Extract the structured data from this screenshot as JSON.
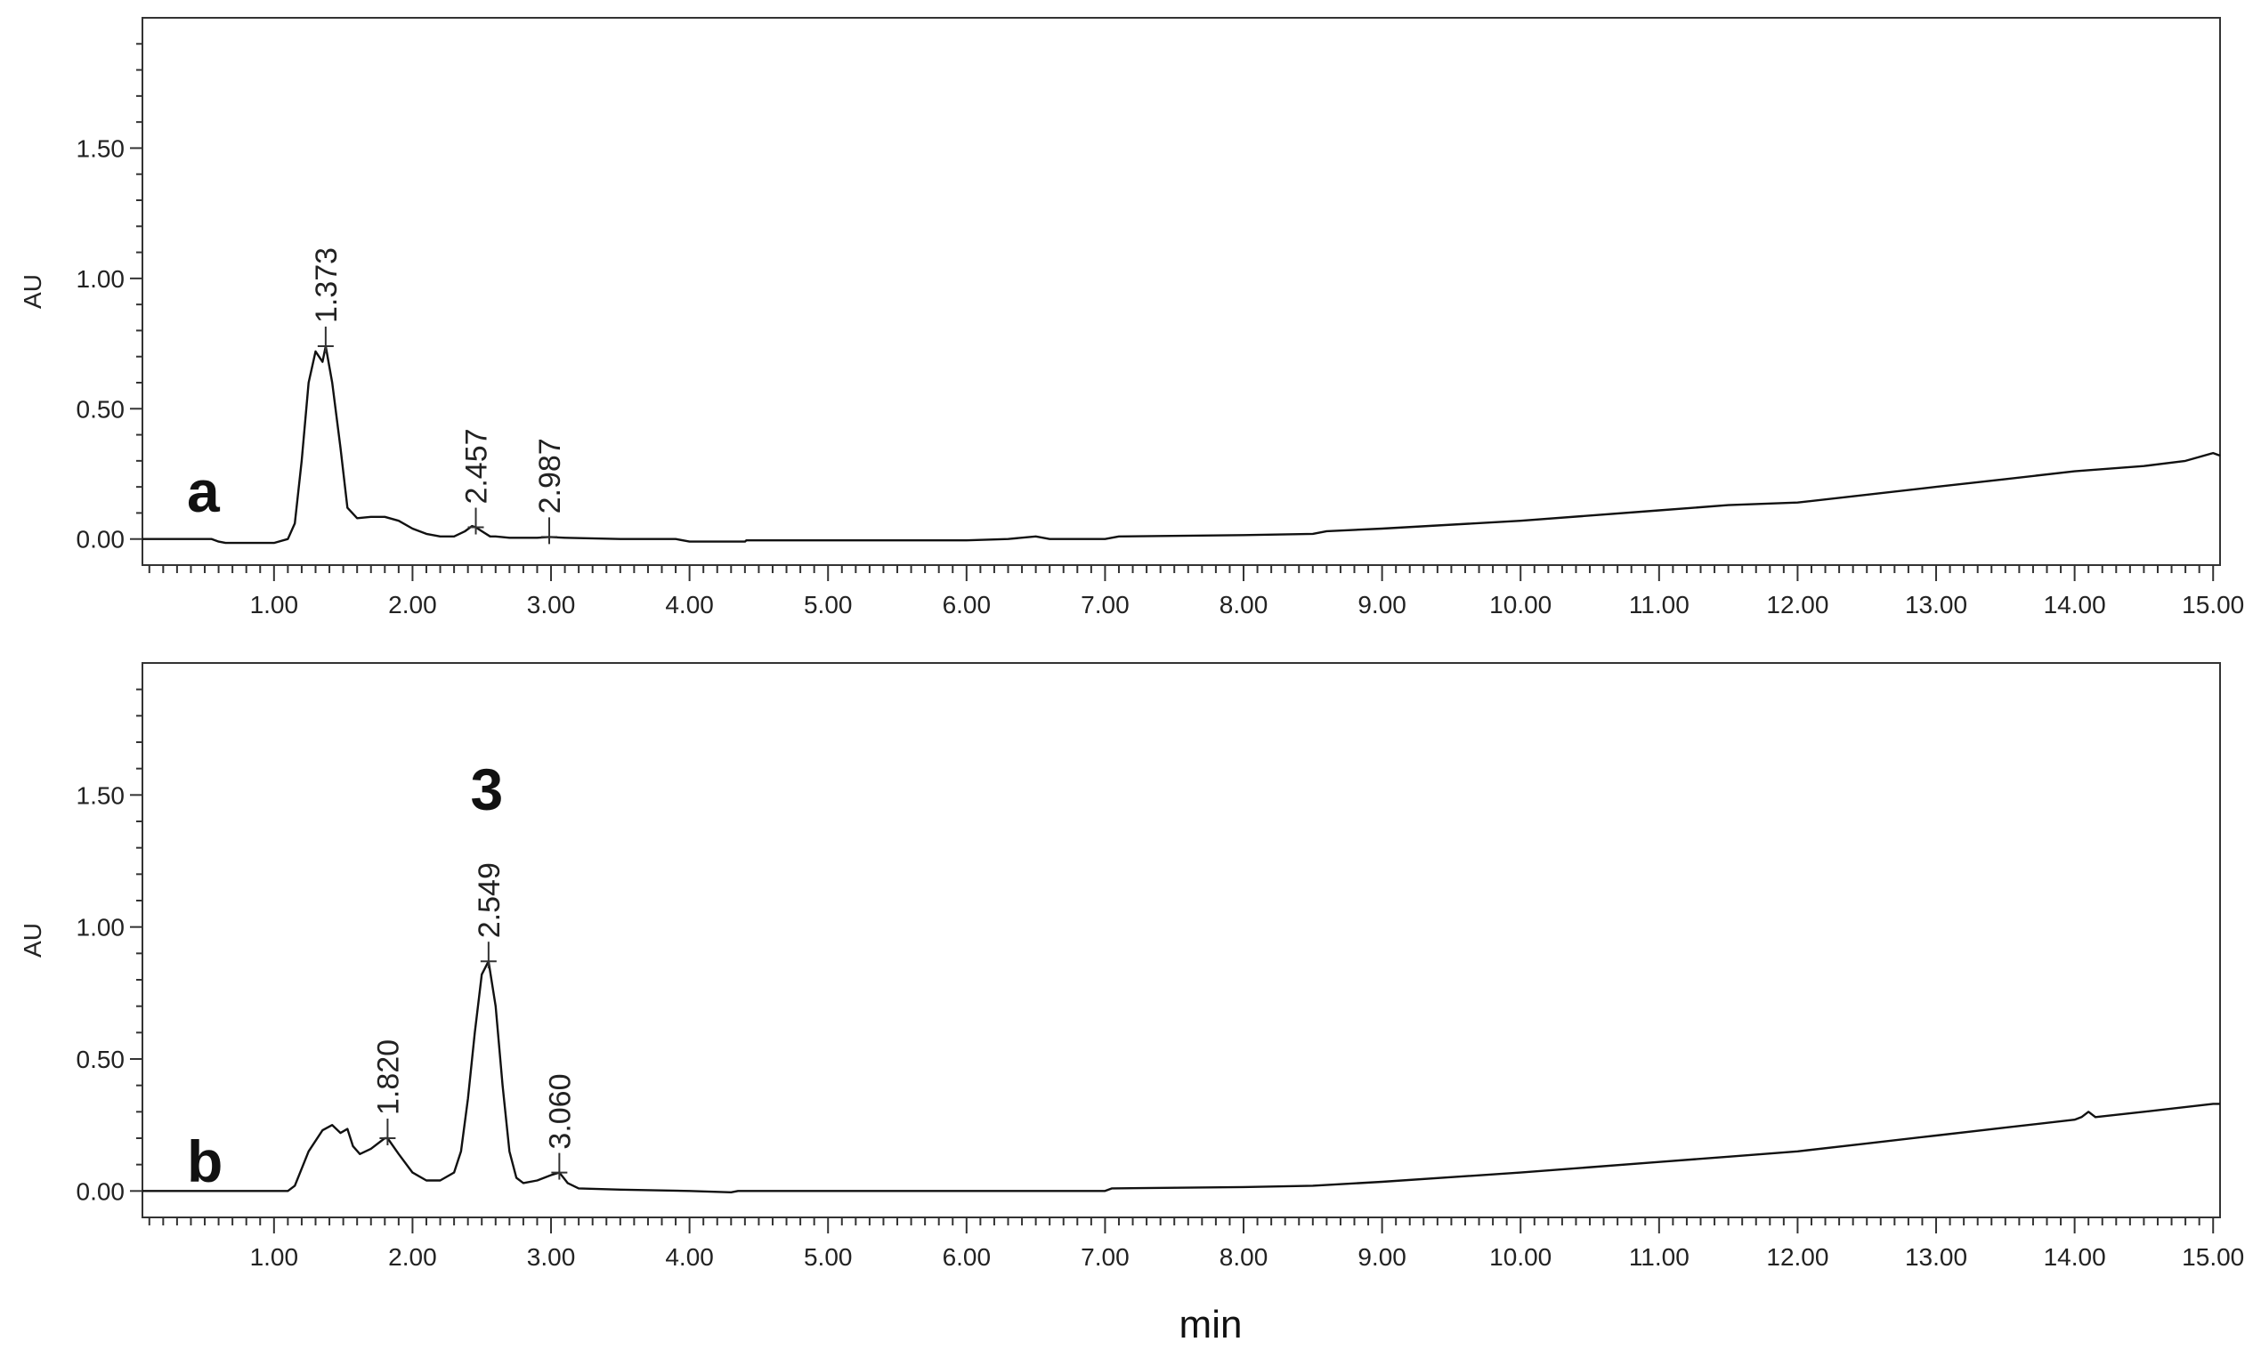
{
  "chart_data": {
    "type": "line",
    "xlabel": "min",
    "x_ticks": [
      "1.00",
      "2.00",
      "3.00",
      "4.00",
      "5.00",
      "6.00",
      "7.00",
      "8.00",
      "9.00",
      "10.00",
      "11.00",
      "12.00",
      "13.00",
      "14.00",
      "15.00"
    ],
    "y_ticks": [
      "0.00",
      "0.50",
      "1.00",
      "1.50"
    ],
    "xlim": [
      0.05,
      15.05
    ],
    "ylim": [
      -0.1,
      2.0
    ],
    "grid": false,
    "panels": [
      {
        "panel_label": "a",
        "ylabel": "AU",
        "compound_label": "",
        "series": [
          {
            "x": [
              0.05,
              0.55,
              0.6,
              0.65,
              1.0,
              1.1,
              1.15,
              1.2,
              1.25,
              1.3,
              1.35,
              1.373,
              1.42,
              1.48,
              1.53,
              1.6,
              1.7,
              1.8,
              1.9,
              2.0,
              2.1,
              2.2,
              2.3,
              2.38,
              2.43,
              2.457,
              2.5,
              2.56,
              2.6,
              2.7,
              2.9,
              2.987,
              3.1,
              3.5,
              3.9,
              4.0,
              4.4,
              4.41,
              5.0,
              6.0,
              6.3,
              6.5,
              6.6,
              7.0,
              7.1,
              8.0,
              8.5,
              8.6,
              9.0,
              10.0,
              11.0,
              11.5,
              12.0,
              12.5,
              13.0,
              13.5,
              14.0,
              14.5,
              14.8,
              15.0,
              15.05
            ],
            "y": [
              0.0,
              0.0,
              -0.01,
              -0.015,
              -0.015,
              0.0,
              0.06,
              0.3,
              0.6,
              0.72,
              0.68,
              0.74,
              0.6,
              0.35,
              0.12,
              0.08,
              0.085,
              0.085,
              0.07,
              0.04,
              0.02,
              0.01,
              0.01,
              0.03,
              0.05,
              0.045,
              0.03,
              0.01,
              0.01,
              0.005,
              0.005,
              0.008,
              0.005,
              0.0,
              0.0,
              -0.01,
              -0.01,
              -0.005,
              -0.005,
              -0.005,
              0.0,
              0.01,
              0.0,
              0.0,
              0.01,
              0.015,
              0.02,
              0.03,
              0.04,
              0.07,
              0.11,
              0.13,
              0.14,
              0.17,
              0.2,
              0.23,
              0.26,
              0.28,
              0.3,
              0.33,
              0.32
            ],
            "peaks": [
              {
                "x": 1.373,
                "y": 0.74,
                "label": "1.373"
              },
              {
                "x": 2.457,
                "y": 0.045,
                "label": "2.457"
              },
              {
                "x": 2.987,
                "y": 0.008,
                "label": "2.987"
              }
            ]
          }
        ]
      },
      {
        "panel_label": "b",
        "ylabel": "AU",
        "compound_label": "3",
        "series": [
          {
            "x": [
              0.05,
              1.1,
              1.15,
              1.25,
              1.35,
              1.42,
              1.48,
              1.53,
              1.57,
              1.62,
              1.7,
              1.8,
              1.82,
              1.9,
              2.0,
              2.1,
              2.2,
              2.3,
              2.35,
              2.4,
              2.45,
              2.5,
              2.549,
              2.6,
              2.65,
              2.7,
              2.75,
              2.8,
              2.9,
              3.0,
              3.06,
              3.12,
              3.2,
              3.5,
              4.0,
              4.3,
              4.35,
              5.0,
              6.0,
              7.0,
              7.05,
              8.0,
              8.5,
              9.0,
              10.0,
              11.0,
              11.5,
              12.0,
              12.5,
              13.0,
              13.5,
              14.0,
              14.05,
              14.1,
              14.15,
              14.5,
              15.0,
              15.05
            ],
            "y": [
              0.0,
              0.0,
              0.02,
              0.15,
              0.23,
              0.25,
              0.22,
              0.235,
              0.17,
              0.14,
              0.16,
              0.2,
              0.2,
              0.14,
              0.07,
              0.04,
              0.04,
              0.07,
              0.15,
              0.35,
              0.6,
              0.82,
              0.87,
              0.7,
              0.4,
              0.15,
              0.05,
              0.03,
              0.04,
              0.06,
              0.07,
              0.03,
              0.01,
              0.005,
              0.0,
              -0.005,
              0.0,
              0.0,
              0.0,
              0.0,
              0.01,
              0.015,
              0.02,
              0.035,
              0.07,
              0.11,
              0.13,
              0.15,
              0.18,
              0.21,
              0.24,
              0.27,
              0.28,
              0.3,
              0.28,
              0.3,
              0.33,
              0.33
            ],
            "peaks": [
              {
                "x": 1.82,
                "y": 0.2,
                "label": "1.820"
              },
              {
                "x": 2.549,
                "y": 0.87,
                "label": "2.549"
              },
              {
                "x": 3.06,
                "y": 0.07,
                "label": "3.060"
              }
            ]
          }
        ]
      }
    ]
  }
}
